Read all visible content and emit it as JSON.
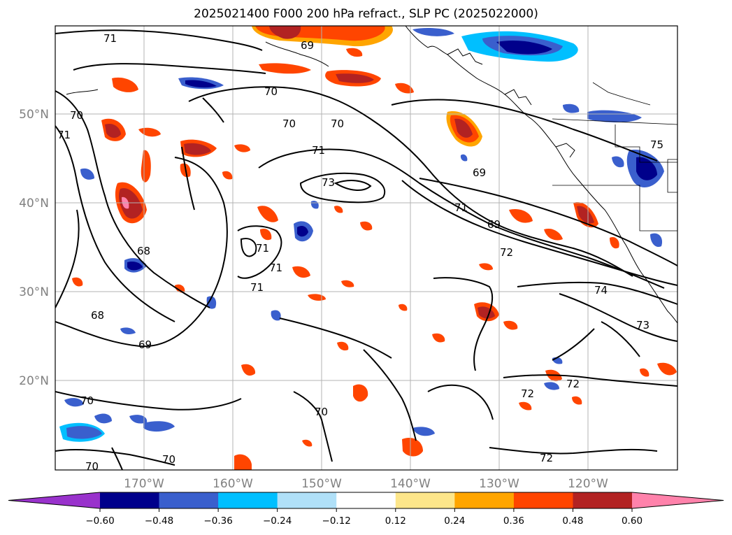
{
  "title": "2025021400 F000 200 hPa refract., SLP PC (2025022000)",
  "latitude_labels": [
    "50°N",
    "40°N",
    "30°N",
    "20°N"
  ],
  "longitude_labels": [
    "170°W",
    "160°W",
    "150°W",
    "140°W",
    "130°W",
    "120°W"
  ],
  "colorbar": {
    "ticks": [
      "−0.60",
      "−0.48",
      "−0.36",
      "−0.24",
      "−0.12",
      "0.12",
      "0.24",
      "0.36",
      "0.48",
      "0.60"
    ],
    "colors": [
      "#9932cc",
      "#00008b",
      "#3a5fcd",
      "#00bfff",
      "#b0e0f8",
      "#ffffff",
      "#fde68a",
      "#ffa500",
      "#ff4500",
      "#b22222",
      "#ff82ab"
    ]
  },
  "contour_labels": [
    "71",
    "69",
    "70",
    "70",
    "70",
    "71",
    "73",
    "69",
    "71",
    "69",
    "72",
    "74",
    "73",
    "75",
    "68",
    "68",
    "71",
    "71",
    "69",
    "70",
    "70",
    "70",
    "70",
    "72",
    "72",
    "72",
    "71",
    "71",
    "70"
  ]
}
